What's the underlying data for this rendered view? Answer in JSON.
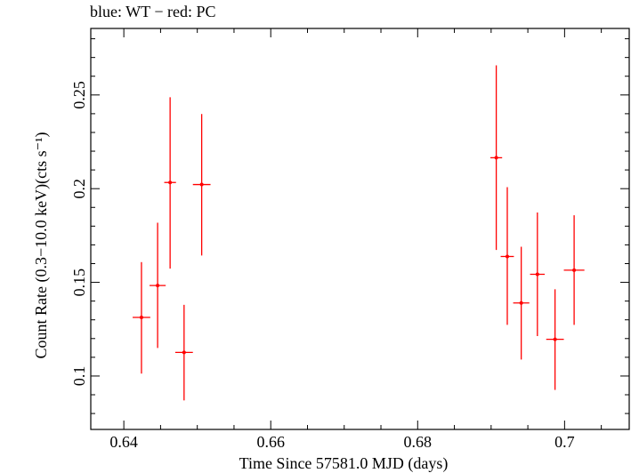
{
  "chart_data": {
    "type": "scatter",
    "title": "blue: WT − red: PC",
    "xlabel": "Time Since 57581.0 MJD (days)",
    "ylabel": "Count Rate (0.3−10.0 keV)(cts s⁻¹)",
    "xlim": [
      0.6355,
      0.7088
    ],
    "ylim": [
      0.0715,
      0.2855
    ],
    "xticks": [
      "0.64",
      "0.66",
      "0.68",
      "0.7"
    ],
    "yticks": [
      "0.1",
      "0.15",
      "0.2",
      "0.25"
    ],
    "grid": false,
    "series": [
      {
        "color": "#ff0000",
        "points": [
          {
            "x": 0.6424,
            "y": 0.1313,
            "xerr": 0.0012,
            "ylow": 0.1013,
            "yhigh": 0.1608
          },
          {
            "x": 0.6446,
            "y": 0.1483,
            "xerr": 0.0011,
            "ylow": 0.115,
            "yhigh": 0.1818
          },
          {
            "x": 0.6463,
            "y": 0.2033,
            "xerr": 0.0008,
            "ylow": 0.1573,
            "yhigh": 0.2488
          },
          {
            "x": 0.6482,
            "y": 0.1126,
            "xerr": 0.0012,
            "ylow": 0.087,
            "yhigh": 0.138
          },
          {
            "x": 0.6506,
            "y": 0.2022,
            "xerr": 0.0012,
            "ylow": 0.1643,
            "yhigh": 0.2398
          },
          {
            "x": 0.6907,
            "y": 0.2165,
            "xerr": 0.0008,
            "ylow": 0.1673,
            "yhigh": 0.2658
          },
          {
            "x": 0.6922,
            "y": 0.1638,
            "xerr": 0.0009,
            "ylow": 0.1273,
            "yhigh": 0.2008
          },
          {
            "x": 0.6941,
            "y": 0.139,
            "xerr": 0.0011,
            "ylow": 0.1088,
            "yhigh": 0.169
          },
          {
            "x": 0.6963,
            "y": 0.1543,
            "xerr": 0.001,
            "ylow": 0.1213,
            "yhigh": 0.1873
          },
          {
            "x": 0.6987,
            "y": 0.1196,
            "xerr": 0.0012,
            "ylow": 0.0926,
            "yhigh": 0.1463
          },
          {
            "x": 0.7013,
            "y": 0.1565,
            "xerr": 0.0014,
            "ylow": 0.1273,
            "yhigh": 0.1858
          }
        ]
      }
    ]
  }
}
